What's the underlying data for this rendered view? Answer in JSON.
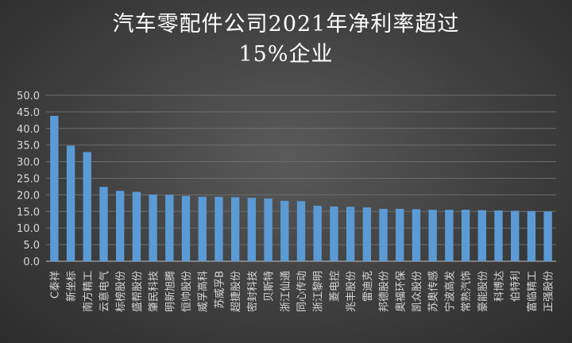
{
  "chart_data": {
    "type": "bar",
    "title_lines": [
      "汽车零配件公司2021年净利率超过",
      "15%企业"
    ],
    "xlabel": "",
    "ylabel": "",
    "ylim": [
      0,
      50
    ],
    "yticks": [
      "0.0",
      "5.0",
      "10.0",
      "15.0",
      "20.0",
      "25.0",
      "30.0",
      "35.0",
      "40.0",
      "45.0",
      "50.0"
    ],
    "grid": true,
    "legend": "none",
    "bar_color": "#5b9bd5",
    "categories": [
      "C泰祥",
      "新坐标",
      "南方精工",
      "云意电气",
      "标榜股份",
      "盛帮股份",
      "肇民科技",
      "明新旭腾",
      "恒帅股份",
      "威孚高科",
      "苏威孚B",
      "超捷股份",
      "密封科技",
      "贝斯特",
      "浙江仙通",
      "同心传动",
      "浙江黎明",
      "菱电控",
      "兆丰股份",
      "雷迪克",
      "邦德股份",
      "奥福环保",
      "凯众股份",
      "苏奥传感",
      "宁波高发",
      "常熟汽饰",
      "豪能股份",
      "科博达",
      "伯特利",
      "富临精工",
      "正强股份"
    ],
    "values": [
      43.8,
      34.8,
      32.9,
      22.4,
      21.2,
      20.9,
      20.1,
      20.0,
      19.7,
      19.4,
      19.4,
      19.3,
      19.1,
      18.9,
      18.2,
      18.1,
      16.7,
      16.5,
      16.4,
      16.2,
      15.8,
      15.8,
      15.7,
      15.5,
      15.5,
      15.5,
      15.4,
      15.3,
      15.2,
      15.1,
      15.0
    ]
  }
}
